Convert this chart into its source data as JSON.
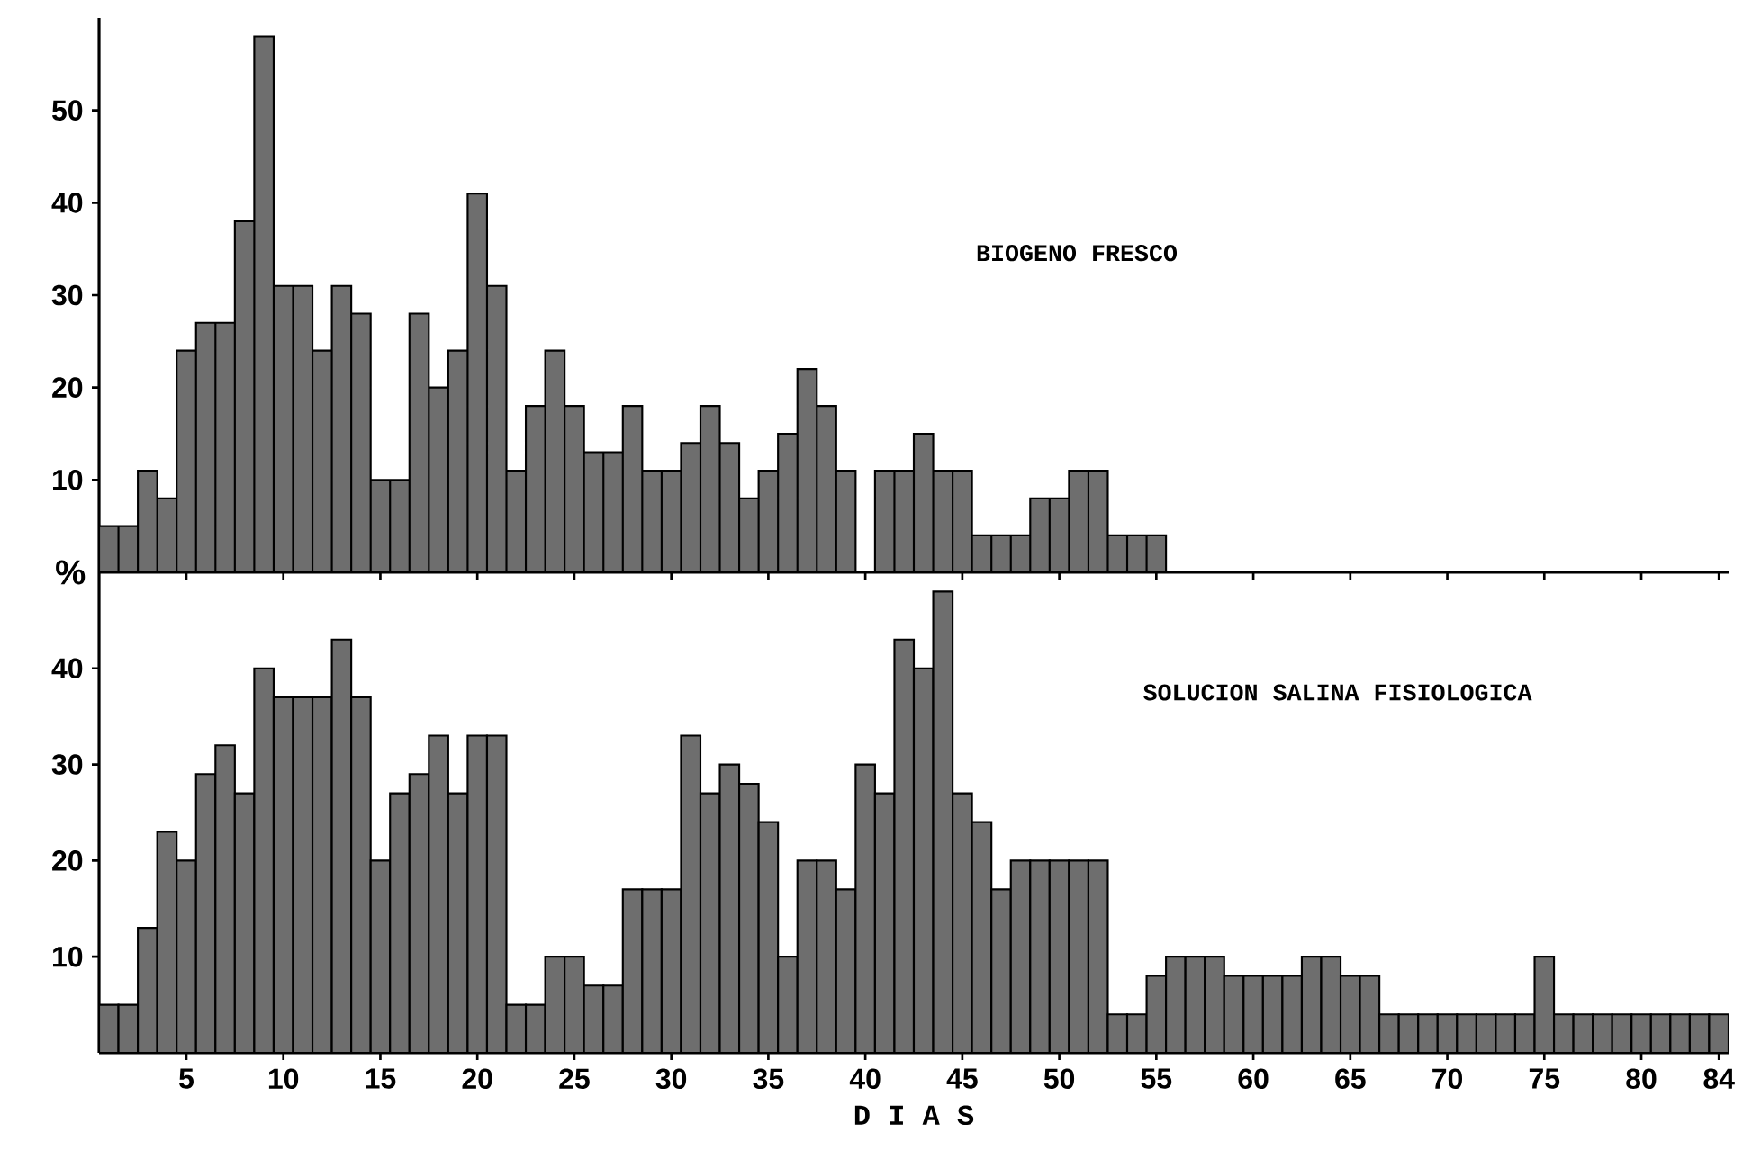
{
  "chart_data": [
    {
      "type": "bar",
      "title": "BIOGENO FRESCO",
      "ylabel": "%",
      "color": "#6e6e6e",
      "tick_labels": "y",
      "x": [
        1,
        2,
        3,
        4,
        5,
        6,
        7,
        8,
        9,
        10,
        11,
        12,
        13,
        14,
        15,
        16,
        17,
        18,
        19,
        20,
        21,
        22,
        23,
        24,
        25,
        26,
        27,
        28,
        29,
        30,
        31,
        32,
        33,
        34,
        35,
        36,
        37,
        38,
        39,
        40,
        41,
        42,
        43,
        44,
        45,
        46,
        47,
        48,
        49,
        50,
        51,
        52,
        53,
        54,
        55,
        56,
        57,
        58,
        59,
        60,
        61,
        62,
        63,
        64,
        65,
        66,
        67,
        68,
        69,
        70,
        71,
        72,
        73,
        74,
        75,
        76,
        77,
        78,
        79,
        80,
        81,
        82,
        83,
        84
      ],
      "values": [
        5,
        5,
        11,
        8,
        24,
        27,
        27,
        38,
        58,
        31,
        31,
        24,
        31,
        28,
        10,
        10,
        28,
        20,
        24,
        41,
        31,
        11,
        18,
        24,
        18,
        13,
        13,
        18,
        11,
        11,
        14,
        18,
        14,
        8,
        11,
        15,
        22,
        18,
        11,
        0,
        11,
        11,
        15,
        11,
        11,
        4,
        4,
        4,
        8,
        8,
        11,
        11,
        4,
        4,
        4,
        0,
        0,
        0,
        0,
        0,
        0,
        0,
        0,
        0,
        0,
        0,
        0,
        0,
        0,
        0,
        0,
        0,
        0,
        0,
        0,
        0,
        0,
        0,
        0,
        0,
        0,
        0,
        0,
        0
      ],
      "xlim": [
        0.5,
        84.5
      ],
      "xticks": [
        5,
        10,
        15,
        20,
        25,
        30,
        35,
        40,
        45,
        50,
        55,
        60,
        65,
        70,
        75,
        80,
        84
      ],
      "ylim": [
        0,
        60
      ],
      "yticks": [
        10,
        20,
        30,
        40,
        50
      ]
    },
    {
      "type": "bar",
      "title": "SOLUCION SALINA FISIOLOGICA",
      "xlabel": "D I A S",
      "color": "#6e6e6e",
      "x": [
        1,
        2,
        3,
        4,
        5,
        6,
        7,
        8,
        9,
        10,
        11,
        12,
        13,
        14,
        15,
        16,
        17,
        18,
        19,
        20,
        21,
        22,
        23,
        24,
        25,
        26,
        27,
        28,
        29,
        30,
        31,
        32,
        33,
        34,
        35,
        36,
        37,
        38,
        39,
        40,
        41,
        42,
        43,
        44,
        45,
        46,
        47,
        48,
        49,
        50,
        51,
        52,
        53,
        54,
        55,
        56,
        57,
        58,
        59,
        60,
        61,
        62,
        63,
        64,
        65,
        66,
        67,
        68,
        69,
        70,
        71,
        72,
        73,
        74,
        75,
        76,
        77,
        78,
        79,
        80,
        81,
        82,
        83,
        84
      ],
      "values": [
        5,
        5,
        13,
        23,
        20,
        29,
        32,
        27,
        40,
        37,
        37,
        37,
        43,
        37,
        20,
        27,
        29,
        33,
        27,
        33,
        33,
        5,
        5,
        10,
        10,
        7,
        7,
        17,
        17,
        17,
        33,
        27,
        30,
        28,
        24,
        10,
        20,
        20,
        17,
        30,
        27,
        43,
        40,
        48,
        27,
        24,
        17,
        20,
        20,
        20,
        20,
        20,
        4,
        4,
        8,
        10,
        10,
        10,
        8,
        8,
        8,
        8,
        10,
        10,
        8,
        8,
        4,
        4,
        4,
        4,
        4,
        4,
        4,
        4,
        10,
        4,
        4,
        4,
        4,
        4,
        4,
        4,
        4,
        4
      ],
      "xlim": [
        0.5,
        84.5
      ],
      "xticks": [
        5,
        10,
        15,
        20,
        25,
        30,
        35,
        40,
        45,
        50,
        55,
        60,
        65,
        70,
        75,
        80,
        84
      ],
      "ylim": [
        0,
        50
      ],
      "yticks": [
        10,
        20,
        30,
        40
      ]
    }
  ]
}
